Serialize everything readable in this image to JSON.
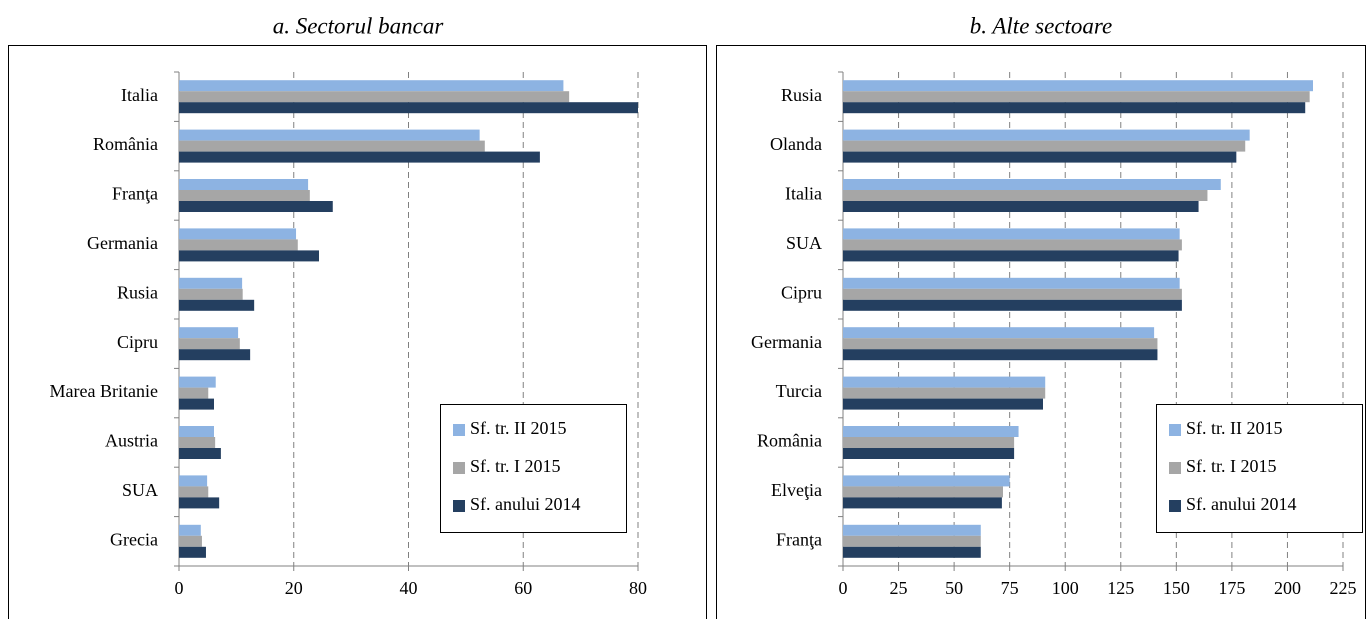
{
  "chart_data": [
    {
      "type": "bar",
      "orientation": "horizontal",
      "title": "a. Sectorul bancar",
      "categories": [
        "Italia",
        "România",
        "Franţa",
        "Germania",
        "Rusia",
        "Cipru",
        "Marea Britanie",
        "Austria",
        "SUA",
        "Grecia"
      ],
      "series": [
        {
          "name": "Sf. tr. II 2015",
          "color": "#8db3e2",
          "values": [
            67,
            52.4,
            22.5,
            20.4,
            11,
            10.3,
            6.4,
            6.1,
            4.9,
            3.8
          ]
        },
        {
          "name": "Sf. tr. I 2015",
          "color": "#a6a6a6",
          "values": [
            68,
            53.3,
            22.8,
            20.7,
            11.1,
            10.6,
            5.1,
            6.3,
            5.1,
            4
          ]
        },
        {
          "name": "Sf. anului 2014",
          "color": "#243f60",
          "values": [
            80,
            62.9,
            26.8,
            24.4,
            13.1,
            12.4,
            6.1,
            7.3,
            7,
            4.7
          ]
        }
      ],
      "xlim": [
        0,
        80
      ],
      "xticks": [
        0,
        20,
        40,
        60,
        80
      ],
      "grid": true,
      "legend": "lower right"
    },
    {
      "type": "bar",
      "orientation": "horizontal",
      "title": "b. Alte sectoare",
      "categories": [
        "Rusia",
        "Olanda",
        "Italia",
        "SUA",
        "Cipru",
        "Germania",
        "Turcia",
        "România",
        "Elveţia",
        "Franţa"
      ],
      "series": [
        {
          "name": "Sf. tr. II 2015",
          "color": "#8db3e2",
          "values": [
            211.5,
            183,
            170,
            151.5,
            151.5,
            140,
            91,
            79,
            75,
            62
          ]
        },
        {
          "name": "Sf. tr. I 2015",
          "color": "#a6a6a6",
          "values": [
            210,
            181,
            164,
            152.5,
            152.5,
            141.5,
            91,
            77,
            72,
            62
          ]
        },
        {
          "name": "Sf. anului 2014",
          "color": "#243f60",
          "values": [
            208,
            177,
            160,
            151,
            152.5,
            141.5,
            90,
            77,
            71.5,
            62
          ]
        }
      ],
      "xlim": [
        0,
        225
      ],
      "xticks": [
        0,
        25,
        50,
        75,
        100,
        125,
        150,
        175,
        200,
        225
      ],
      "grid": true,
      "legend": "lower right"
    }
  ]
}
